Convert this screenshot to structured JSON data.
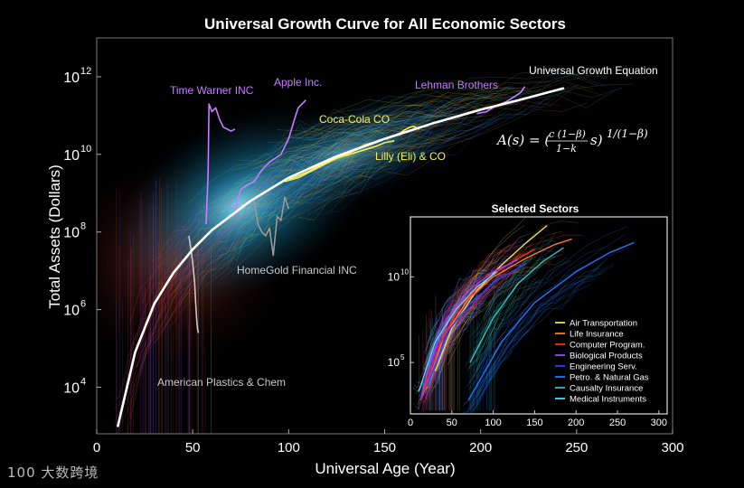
{
  "watermark": "100 大数跨境",
  "chart_data": {
    "type": "line",
    "title": "Universal Growth Curve for All Economic Sectors",
    "xlabel": "Universal Age (Year)",
    "ylabel": "Total Assets (Dollars)",
    "xlim": [
      0,
      300
    ],
    "ylim_log10": [
      2.8,
      13.0
    ],
    "xticks": [
      0,
      50,
      100,
      150,
      200,
      250,
      300
    ],
    "yticks": [
      {
        "label": "10",
        "exp": "4",
        "v": 4
      },
      {
        "label": "10",
        "exp": "6",
        "v": 6
      },
      {
        "label": "10",
        "exp": "8",
        "v": 8
      },
      {
        "label": "10",
        "exp": "10",
        "v": 10
      },
      {
        "label": "10",
        "exp": "12",
        "v": 12
      }
    ],
    "universal_curve": {
      "name": "Universal Growth Equation",
      "equation": "A(s) = (c(1−β)/(1−k) s)^(1/(1−β))",
      "color": "#ffffff",
      "x": [
        11,
        20,
        30,
        40,
        50,
        60,
        80,
        100,
        125,
        150,
        175,
        200,
        220,
        243
      ],
      "log10": [
        3.0,
        4.9,
        6.15,
        6.95,
        7.55,
        8.05,
        8.8,
        9.4,
        9.95,
        10.4,
        10.8,
        11.15,
        11.4,
        11.7
      ]
    },
    "companies": [
      {
        "name": "Time Warner INC",
        "color": "#c77dff",
        "x": [
          57,
          58,
          58.5,
          60,
          62,
          64,
          66,
          68,
          70,
          72
        ],
        "log10": [
          8.2,
          9.5,
          11.3,
          11.1,
          11.2,
          10.9,
          10.7,
          10.65,
          10.6,
          10.65
        ]
      },
      {
        "name": "Apple Inc.",
        "color": "#c77dff",
        "x": [
          71,
          75,
          78,
          82,
          86,
          90,
          93,
          96,
          100,
          103,
          105,
          107,
          109
        ],
        "log10": [
          8.4,
          9.1,
          9.2,
          9.3,
          9.6,
          9.8,
          9.9,
          10.0,
          10.4,
          10.9,
          11.2,
          11.3,
          11.4
        ]
      },
      {
        "name": "Lehman Brothers",
        "color": "#c77dff",
        "x": [
          198,
          203,
          208,
          213,
          218,
          221,
          223
        ],
        "log10": [
          11.05,
          11.1,
          11.25,
          11.35,
          11.5,
          11.6,
          11.75
        ]
      },
      {
        "name": "Coca-Cola CO",
        "color": "#f5f05a",
        "x": [
          100,
          110,
          120,
          130,
          140,
          150,
          157,
          160,
          163,
          165,
          168
        ],
        "log10": [
          9.35,
          9.55,
          9.8,
          10.0,
          10.25,
          10.4,
          10.5,
          10.62,
          10.7,
          10.72,
          10.65
        ]
      },
      {
        "name": "Lilly (Eli) & CO",
        "color": "#f5f05a",
        "x": [
          98,
          105,
          115,
          125,
          135,
          145,
          150,
          155
        ],
        "log10": [
          9.3,
          9.4,
          9.65,
          9.9,
          10.05,
          10.2,
          10.3,
          10.35
        ]
      },
      {
        "name": "HomeGold Financial INC",
        "color": "#9a9a9a",
        "x": [
          82,
          84,
          86,
          88,
          90,
          92,
          94,
          96,
          98,
          100
        ],
        "log10": [
          8.8,
          8.2,
          8.0,
          7.9,
          8.1,
          7.4,
          8.4,
          8.3,
          8.9,
          8.6
        ]
      },
      {
        "name": "American Plastics & Chem",
        "color": "#c8c8c8",
        "x": [
          48,
          49,
          50,
          51,
          51.5,
          52,
          52.5,
          53
        ],
        "log10": [
          7.9,
          7.6,
          7.2,
          6.7,
          6.2,
          5.8,
          5.5,
          5.4
        ]
      }
    ],
    "inset": {
      "title": "Selected Sectors",
      "xlim": [
        0,
        310
      ],
      "ylim_log10": [
        2.0,
        13.5
      ],
      "xticks": [
        0,
        50,
        100,
        150,
        200,
        250,
        300
      ],
      "yticks": [
        {
          "label": "10",
          "exp": "5",
          "v": 5
        },
        {
          "label": "10",
          "exp": "10",
          "v": 10
        }
      ],
      "legend_position": "lower-right",
      "sectors": [
        {
          "name": "Air Transportation",
          "color": "#f0e050",
          "x": [
            30,
            50,
            80,
            110,
            140,
            165
          ],
          "log10": [
            4.5,
            7.0,
            9.2,
            10.7,
            12.0,
            13.0
          ]
        },
        {
          "name": "Life Insurance",
          "color": "#ff7a2a",
          "x": [
            20,
            40,
            70,
            100,
            140,
            175,
            195
          ],
          "log10": [
            3.5,
            6.5,
            8.7,
            10.0,
            11.1,
            11.9,
            12.2
          ]
        },
        {
          "name": "Computer Program.",
          "color": "#ff2222",
          "x": [
            15,
            35,
            60,
            90,
            120,
            150
          ],
          "log10": [
            3.2,
            6.0,
            8.3,
            9.8,
            10.8,
            11.6
          ]
        },
        {
          "name": "Biological Products",
          "color": "#a040ff",
          "x": [
            12,
            25,
            45,
            70,
            100,
            130
          ],
          "log10": [
            2.8,
            5.2,
            7.6,
            9.2,
            10.3,
            11.0
          ]
        },
        {
          "name": "Engineering Serv.",
          "color": "#2a3cff",
          "x": [
            20,
            45,
            75,
            105,
            140
          ],
          "log10": [
            3.6,
            6.8,
            8.6,
            9.8,
            10.8
          ]
        },
        {
          "name": "Petro. & Natural Gas",
          "color": "#1a7aff",
          "x": [
            70,
            110,
            150,
            200,
            240,
            270
          ],
          "log10": [
            2.8,
            6.2,
            8.5,
            10.3,
            11.4,
            12.0
          ]
        },
        {
          "name": "Causalty Insurance",
          "color": "#30c0c0",
          "x": [
            72,
            100,
            130,
            160,
            185
          ],
          "log10": [
            5.0,
            7.6,
            9.6,
            10.9,
            11.7
          ]
        },
        {
          "name": "Medical Instruments",
          "color": "#50d8ff",
          "x": [
            10,
            30,
            55,
            80,
            105
          ],
          "log10": [
            3.3,
            6.2,
            8.1,
            9.4,
            10.3
          ]
        }
      ]
    }
  }
}
